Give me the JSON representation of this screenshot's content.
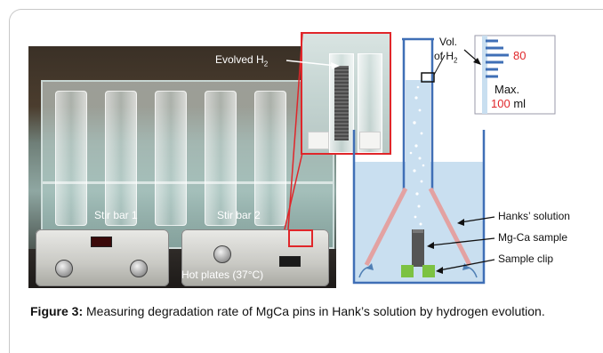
{
  "photo": {
    "inset_label": "Evolved H",
    "inset_label_sub": "2",
    "stir_bar_1": "Stir bar 1",
    "stir_bar_2": "Stir bar 2",
    "hot_plates": "Hot plates (37°C)"
  },
  "diagram": {
    "vol_label_line1": "Vol.",
    "vol_label_line2": "of H",
    "vol_label_sub": "2",
    "scale_value": "80",
    "max_label": "Max.",
    "max_value": "100",
    "max_unit": " ml",
    "hanks_label": "Hanks’ solution",
    "sample_label": "Mg-Ca sample",
    "clip_label": "Sample clip",
    "colors": {
      "solution": "#c9dff0",
      "tube_outline": "#3f6fb6",
      "funnel": "#e3a2a2",
      "sample": "#555555",
      "clip": "#7cc242",
      "accent_red": "#e0262a"
    }
  },
  "caption": {
    "label": "Figure 3:",
    "text": " Measuring degradation rate of MgCa pins in Hank’s solution by hydrogen evolution."
  }
}
